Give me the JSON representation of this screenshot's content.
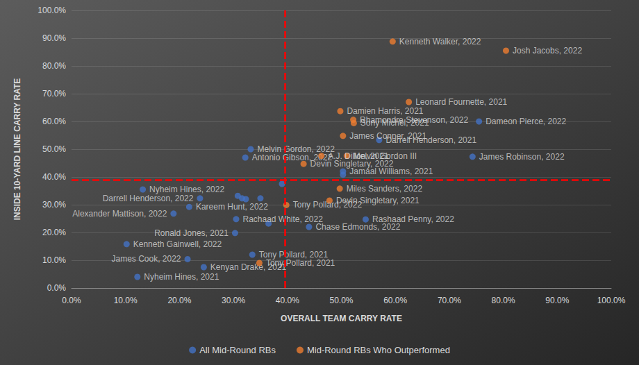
{
  "chart_data": {
    "type": "scatter",
    "xlabel": "OVERALL TEAM CARRY RATE",
    "ylabel": "INSIDE 10-YARD LINE CARRY RATE",
    "xlim": [
      0,
      100
    ],
    "ylim": [
      0,
      100
    ],
    "xticks": [
      {
        "value": 0,
        "label": "0.0%"
      },
      {
        "value": 10,
        "label": "10.0%"
      },
      {
        "value": 20,
        "label": "20.0%"
      },
      {
        "value": 30,
        "label": "30.0%"
      },
      {
        "value": 40,
        "label": "40.0%"
      },
      {
        "value": 50,
        "label": "50.0%"
      },
      {
        "value": 60,
        "label": "60.0%"
      },
      {
        "value": 70,
        "label": "70.0%"
      },
      {
        "value": 80,
        "label": "80.0%"
      },
      {
        "value": 90,
        "label": "90.0%"
      },
      {
        "value": 100,
        "label": "100.0%"
      }
    ],
    "yticks": [
      {
        "value": 0,
        "label": "0.0%"
      },
      {
        "value": 10,
        "label": "10.0%"
      },
      {
        "value": 20,
        "label": "20.0%"
      },
      {
        "value": 30,
        "label": "30.0%"
      },
      {
        "value": 40,
        "label": "40.0%"
      },
      {
        "value": 50,
        "label": "50.0%"
      },
      {
        "value": 60,
        "label": "60.0%"
      },
      {
        "value": 70,
        "label": "70.0%"
      },
      {
        "value": 80,
        "label": "80.0%"
      },
      {
        "value": 90,
        "label": "90.0%"
      },
      {
        "value": 100,
        "label": "100.0%"
      }
    ],
    "grid": true,
    "legend": "bottom",
    "vlines": [
      39.5
    ],
    "hlines": [
      39.0
    ],
    "series": [
      {
        "name": "All Mid-Round RBs",
        "color": "#4472c4",
        "x": [
          75.5,
          57.0,
          74.3,
          50.3,
          50.3,
          33.2,
          32.2,
          39.0,
          13.2,
          23.8,
          21.8,
          30.8,
          31.6,
          32.3,
          35.0,
          18.9,
          30.5,
          36.5,
          54.5,
          44.0,
          30.3,
          10.2,
          33.5,
          21.5,
          24.5,
          12.2
        ],
        "values": [
          60.0,
          53.3,
          47.3,
          42.0,
          40.8,
          50.0,
          47.0,
          37.5,
          35.5,
          32.3,
          29.2,
          33.2,
          32.3,
          32.0,
          32.3,
          26.8,
          24.8,
          23.2,
          24.7,
          22.0,
          19.8,
          15.8,
          12.0,
          10.4,
          7.5,
          4.0
        ],
        "labels": [
          "Dameon Pierce, 2022",
          "Darrell Henderson, 2021",
          "James Robinson, 2022",
          "Jamaal Williams, 2021",
          null,
          "Melvin Gordon, 2022",
          "Antonio Gibson, 2022",
          null,
          "Nyheim Hines, 2022",
          "Darrell Henderson, 2022",
          "Kareem Hunt, 2022",
          null,
          null,
          null,
          null,
          "Alexander Mattison, 2022",
          "Rachaad White, 2022",
          null,
          "Rashaad Penny, 2022",
          "Chase Edmonds, 2022",
          "Ronald Jones, 2021",
          "Kenneth Gainwell, 2022",
          "Tony Pollard, 2021",
          "James Cook, 2022",
          "Kenyan Drake, 2021",
          "Nyheim Hines, 2021"
        ]
      },
      {
        "name": "Mid-Round RBs Who Outperformed",
        "color": "#ed7d31",
        "x": [
          59.5,
          80.5,
          49.8,
          62.5,
          52.2,
          52.3,
          50.3,
          46.3,
          51.0,
          43.0,
          49.7,
          47.8,
          39.8,
          34.8
        ],
        "values": [
          88.8,
          85.5,
          63.7,
          67.0,
          60.6,
          59.4,
          54.8,
          47.6,
          47.6,
          44.7,
          35.8,
          31.5,
          29.9,
          9.0
        ],
        "labels": [
          "Kenneth Walker, 2022",
          "Josh Jacobs, 2022",
          "Damien Harris, 2021",
          "Leonard Fournette, 2021",
          "Rhamondre Stevenson, 2022",
          "Sony Michel, 2021",
          "James Conner, 2021",
          "A.J. Dillon, 2021",
          "Melvin Gordon III",
          "Devin Singletary, 2022",
          "Miles Sanders, 2022",
          "Devin Singletary, 2021",
          "Tony Pollard, 2022",
          "Tony Pollard, 2021"
        ]
      }
    ]
  }
}
